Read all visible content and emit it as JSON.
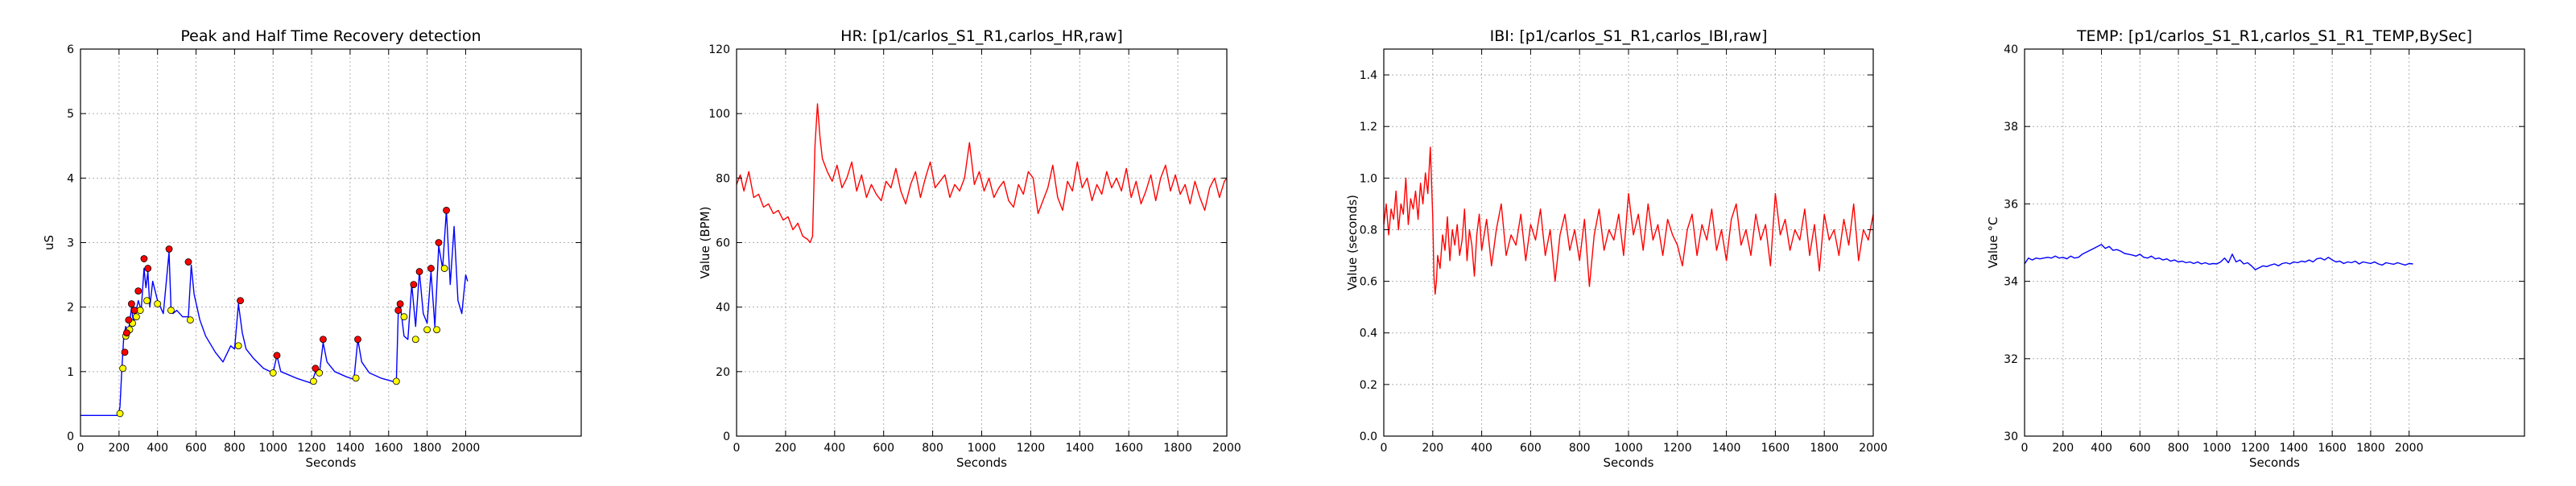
{
  "chart_data": [
    {
      "type": "line",
      "title": "Peak and Half Time Recovery detection",
      "xlabel": "Seconds",
      "ylabel": "uS",
      "xlim": [
        0,
        2600
      ],
      "ylim": [
        0,
        6
      ],
      "xticks": [
        0,
        200,
        400,
        600,
        800,
        1000,
        1200,
        1400,
        1600,
        1800,
        2000
      ],
      "yticks": [
        0,
        1,
        2,
        3,
        4,
        5,
        6
      ],
      "grid": true,
      "line_color": "#0000ff",
      "series": [
        {
          "x": [
            0,
            195,
            205,
            215,
            225,
            235,
            245,
            255,
            265,
            275,
            285,
            300,
            315,
            330,
            340,
            350,
            360,
            375,
            400,
            430,
            460,
            470,
            480,
            500,
            530,
            560,
            575,
            590,
            620,
            650,
            700,
            740,
            780,
            800,
            820,
            840,
            860,
            900,
            950,
            1000,
            1020,
            1040,
            1080,
            1120,
            1200,
            1220,
            1240,
            1260,
            1280,
            1320,
            1380,
            1420,
            1440,
            1460,
            1500,
            1560,
            1620,
            1640,
            1650,
            1660,
            1680,
            1700,
            1720,
            1740,
            1760,
            1780,
            1800,
            1820,
            1840,
            1860,
            1880,
            1900,
            1920,
            1940,
            1960,
            1980,
            2000,
            2010
          ],
          "values": [
            0.32,
            0.32,
            0.45,
            1.05,
            1.55,
            1.7,
            1.6,
            1.75,
            2.0,
            1.75,
            1.9,
            2.1,
            1.95,
            2.6,
            2.3,
            2.55,
            2.0,
            2.4,
            2.1,
            1.9,
            2.85,
            2.0,
            1.9,
            1.95,
            1.85,
            1.85,
            2.65,
            2.2,
            1.8,
            1.55,
            1.3,
            1.15,
            1.4,
            1.35,
            2.05,
            1.6,
            1.35,
            1.2,
            1.05,
            0.98,
            1.25,
            1.0,
            0.95,
            0.9,
            0.82,
            1.0,
            0.95,
            1.45,
            1.15,
            1.0,
            0.92,
            0.88,
            1.5,
            1.15,
            0.98,
            0.9,
            0.85,
            0.82,
            1.9,
            2.05,
            1.55,
            1.5,
            2.35,
            1.7,
            2.55,
            1.9,
            1.75,
            2.55,
            1.7,
            2.95,
            2.6,
            3.5,
            2.35,
            3.25,
            2.1,
            1.9,
            2.5,
            2.4
          ]
        }
      ],
      "peaks": {
        "color": "#ff0000",
        "x": [
          230,
          240,
          250,
          265,
          280,
          300,
          330,
          350,
          460,
          560,
          830,
          1020,
          1220,
          1260,
          1440,
          1650,
          1660,
          1730,
          1760,
          1820,
          1860,
          1900
        ],
        "values": [
          1.3,
          1.6,
          1.8,
          2.05,
          1.95,
          2.25,
          2.75,
          2.6,
          2.9,
          2.7,
          2.1,
          1.25,
          1.05,
          1.5,
          1.5,
          1.95,
          2.05,
          2.35,
          2.55,
          2.6,
          3.0,
          3.5
        ]
      },
      "recoveries": {
        "color": "#ffff00",
        "x": [
          205,
          220,
          235,
          255,
          270,
          290,
          310,
          345,
          400,
          470,
          570,
          820,
          1000,
          1210,
          1240,
          1430,
          1640,
          1680,
          1740,
          1800,
          1850,
          1890
        ],
        "values": [
          0.35,
          1.05,
          1.55,
          1.65,
          1.75,
          1.85,
          1.95,
          2.1,
          2.05,
          1.95,
          1.8,
          1.4,
          0.98,
          0.85,
          0.98,
          0.9,
          0.85,
          1.85,
          1.5,
          1.65,
          1.65,
          2.6
        ]
      }
    },
    {
      "type": "line",
      "title": "HR: [p1/carlos_S1_R1,carlos_HR,raw]",
      "xlabel": "Seconds",
      "ylabel": "Value (BPM)",
      "xlim": [
        0,
        2000
      ],
      "ylim": [
        0,
        120
      ],
      "xticks": [
        0,
        200,
        400,
        600,
        800,
        1000,
        1200,
        1400,
        1600,
        1800,
        2000
      ],
      "yticks": [
        0,
        20,
        40,
        60,
        80,
        100,
        120
      ],
      "grid": true,
      "line_color": "#ff0000",
      "series": [
        {
          "x": [
            0,
            15,
            30,
            50,
            70,
            90,
            110,
            130,
            150,
            170,
            190,
            210,
            230,
            250,
            270,
            290,
            300,
            310,
            320,
            330,
            340,
            350,
            370,
            390,
            410,
            430,
            450,
            470,
            490,
            510,
            530,
            550,
            570,
            590,
            610,
            630,
            650,
            670,
            690,
            710,
            730,
            750,
            770,
            790,
            810,
            830,
            850,
            870,
            890,
            910,
            930,
            950,
            970,
            990,
            1010,
            1030,
            1050,
            1070,
            1090,
            1110,
            1130,
            1150,
            1170,
            1190,
            1210,
            1230,
            1250,
            1270,
            1290,
            1310,
            1330,
            1350,
            1370,
            1390,
            1410,
            1430,
            1450,
            1470,
            1490,
            1510,
            1530,
            1550,
            1570,
            1590,
            1610,
            1630,
            1650,
            1670,
            1690,
            1710,
            1730,
            1750,
            1770,
            1790,
            1810,
            1830,
            1850,
            1870,
            1890,
            1910,
            1930,
            1950,
            1970,
            1990,
            2000
          ],
          "values": [
            78,
            81,
            76,
            82,
            74,
            75,
            71,
            72,
            69,
            70,
            67,
            68,
            64,
            66,
            62,
            61,
            60,
            62,
            90,
            103,
            93,
            86,
            82,
            79,
            84,
            77,
            80,
            85,
            76,
            81,
            74,
            78,
            75,
            73,
            79,
            77,
            83,
            76,
            72,
            78,
            82,
            74,
            80,
            85,
            77,
            79,
            81,
            74,
            78,
            76,
            80,
            91,
            78,
            82,
            76,
            80,
            74,
            77,
            79,
            73,
            71,
            78,
            75,
            82,
            80,
            69,
            73,
            77,
            84,
            74,
            70,
            79,
            76,
            85,
            77,
            80,
            73,
            78,
            75,
            82,
            77,
            80,
            76,
            83,
            74,
            79,
            72,
            76,
            81,
            73,
            80,
            84,
            76,
            81,
            75,
            78,
            72,
            79,
            74,
            70,
            77,
            80,
            74,
            79,
            80
          ]
        }
      ]
    },
    {
      "type": "line",
      "title": "IBI: [p1/carlos_S1_R1,carlos_IBI,raw]",
      "xlabel": "Seconds",
      "ylabel": "Value (seconds)",
      "xlim": [
        0,
        2000
      ],
      "ylim": [
        0.0,
        1.5
      ],
      "xticks": [
        0,
        200,
        400,
        600,
        800,
        1000,
        1200,
        1400,
        1600,
        1800,
        2000
      ],
      "yticks": [
        0.0,
        0.2,
        0.4,
        0.6,
        0.8,
        1.0,
        1.2,
        1.4
      ],
      "grid": true,
      "line_color": "#ff0000",
      "series": [
        {
          "x": [
            0,
            10,
            20,
            30,
            40,
            50,
            60,
            70,
            80,
            90,
            100,
            110,
            120,
            130,
            140,
            150,
            160,
            170,
            180,
            190,
            200,
            205,
            210,
            215,
            220,
            230,
            240,
            250,
            260,
            270,
            280,
            290,
            300,
            310,
            320,
            330,
            340,
            350,
            360,
            370,
            380,
            390,
            400,
            420,
            440,
            460,
            480,
            500,
            520,
            540,
            560,
            580,
            600,
            620,
            640,
            660,
            680,
            700,
            720,
            740,
            760,
            780,
            800,
            820,
            840,
            860,
            880,
            900,
            920,
            940,
            960,
            980,
            1000,
            1020,
            1040,
            1060,
            1080,
            1100,
            1120,
            1140,
            1160,
            1180,
            1200,
            1220,
            1240,
            1260,
            1280,
            1300,
            1320,
            1340,
            1360,
            1380,
            1400,
            1420,
            1440,
            1460,
            1480,
            1500,
            1520,
            1540,
            1560,
            1580,
            1600,
            1620,
            1640,
            1660,
            1680,
            1700,
            1720,
            1740,
            1760,
            1780,
            1800,
            1820,
            1840,
            1860,
            1880,
            1900,
            1920,
            1940,
            1960,
            1980,
            2000
          ],
          "values": [
            0.82,
            0.9,
            0.78,
            0.88,
            0.84,
            0.95,
            0.8,
            0.9,
            0.86,
            1.0,
            0.82,
            0.92,
            0.88,
            0.95,
            0.84,
            0.98,
            0.9,
            1.02,
            0.94,
            1.12,
            0.85,
            0.62,
            0.55,
            0.6,
            0.7,
            0.65,
            0.78,
            0.72,
            0.85,
            0.68,
            0.8,
            0.74,
            0.82,
            0.7,
            0.76,
            0.88,
            0.68,
            0.8,
            0.74,
            0.62,
            0.78,
            0.86,
            0.72,
            0.84,
            0.66,
            0.8,
            0.9,
            0.7,
            0.78,
            0.74,
            0.86,
            0.68,
            0.82,
            0.76,
            0.88,
            0.7,
            0.8,
            0.6,
            0.78,
            0.86,
            0.72,
            0.8,
            0.68,
            0.84,
            0.58,
            0.78,
            0.88,
            0.72,
            0.8,
            0.76,
            0.86,
            0.7,
            0.94,
            0.78,
            0.86,
            0.72,
            0.9,
            0.76,
            0.82,
            0.7,
            0.84,
            0.78,
            0.74,
            0.66,
            0.8,
            0.86,
            0.7,
            0.82,
            0.76,
            0.88,
            0.72,
            0.8,
            0.68,
            0.84,
            0.9,
            0.74,
            0.8,
            0.7,
            0.86,
            0.76,
            0.82,
            0.66,
            0.94,
            0.78,
            0.84,
            0.72,
            0.8,
            0.76,
            0.88,
            0.7,
            0.82,
            0.64,
            0.86,
            0.76,
            0.8,
            0.7,
            0.84,
            0.74,
            0.9,
            0.68,
            0.8,
            0.76,
            0.86
          ]
        }
      ]
    },
    {
      "type": "line",
      "title": "TEMP: [p1/carlos_S1_R1,carlos_S1_R1_TEMP,BySec]",
      "xlabel": "Seconds",
      "ylabel": "Value °C",
      "xlim": [
        0,
        2600
      ],
      "ylim": [
        30,
        40
      ],
      "xticks": [
        0,
        200,
        400,
        600,
        800,
        1000,
        1200,
        1400,
        1600,
        1800,
        2000
      ],
      "yticks": [
        30,
        32,
        34,
        36,
        38,
        40
      ],
      "grid": true,
      "line_color": "#0000ff",
      "series": [
        {
          "x": [
            0,
            20,
            40,
            60,
            80,
            100,
            120,
            140,
            160,
            180,
            200,
            220,
            240,
            260,
            280,
            300,
            320,
            340,
            360,
            380,
            400,
            420,
            440,
            460,
            480,
            500,
            520,
            540,
            560,
            580,
            600,
            620,
            640,
            660,
            680,
            700,
            720,
            740,
            760,
            780,
            800,
            820,
            840,
            860,
            880,
            900,
            920,
            940,
            960,
            980,
            1000,
            1020,
            1040,
            1060,
            1080,
            1100,
            1120,
            1140,
            1160,
            1180,
            1200,
            1220,
            1240,
            1260,
            1280,
            1300,
            1320,
            1340,
            1360,
            1380,
            1400,
            1420,
            1440,
            1460,
            1480,
            1500,
            1520,
            1540,
            1560,
            1580,
            1600,
            1620,
            1640,
            1660,
            1680,
            1700,
            1720,
            1740,
            1760,
            1780,
            1800,
            1820,
            1840,
            1860,
            1880,
            1900,
            1920,
            1940,
            1960,
            1980,
            2000,
            2020
          ],
          "values": [
            34.45,
            34.6,
            34.55,
            34.6,
            34.58,
            34.6,
            34.62,
            34.6,
            34.65,
            34.6,
            34.62,
            34.58,
            34.65,
            34.6,
            34.62,
            34.7,
            34.75,
            34.8,
            34.85,
            34.9,
            34.95,
            34.85,
            34.9,
            34.8,
            34.82,
            34.78,
            34.72,
            34.7,
            34.68,
            34.65,
            34.7,
            34.62,
            34.6,
            34.65,
            34.58,
            34.6,
            34.55,
            34.58,
            34.52,
            34.55,
            34.5,
            34.52,
            34.48,
            34.5,
            34.46,
            34.5,
            34.45,
            34.48,
            34.44,
            34.46,
            34.45,
            34.5,
            34.6,
            34.48,
            34.7,
            34.5,
            34.55,
            34.45,
            34.48,
            34.4,
            34.3,
            34.35,
            34.4,
            34.38,
            34.42,
            34.45,
            34.4,
            34.46,
            34.48,
            34.45,
            34.5,
            34.48,
            34.52,
            34.5,
            34.55,
            34.5,
            34.58,
            34.6,
            34.55,
            34.62,
            34.55,
            34.5,
            34.52,
            34.46,
            34.5,
            34.48,
            34.52,
            34.45,
            34.5,
            34.48,
            34.46,
            34.5,
            34.45,
            34.42,
            34.48,
            34.46,
            34.44,
            34.48,
            34.45,
            34.42,
            34.46,
            34.45
          ]
        }
      ]
    }
  ]
}
